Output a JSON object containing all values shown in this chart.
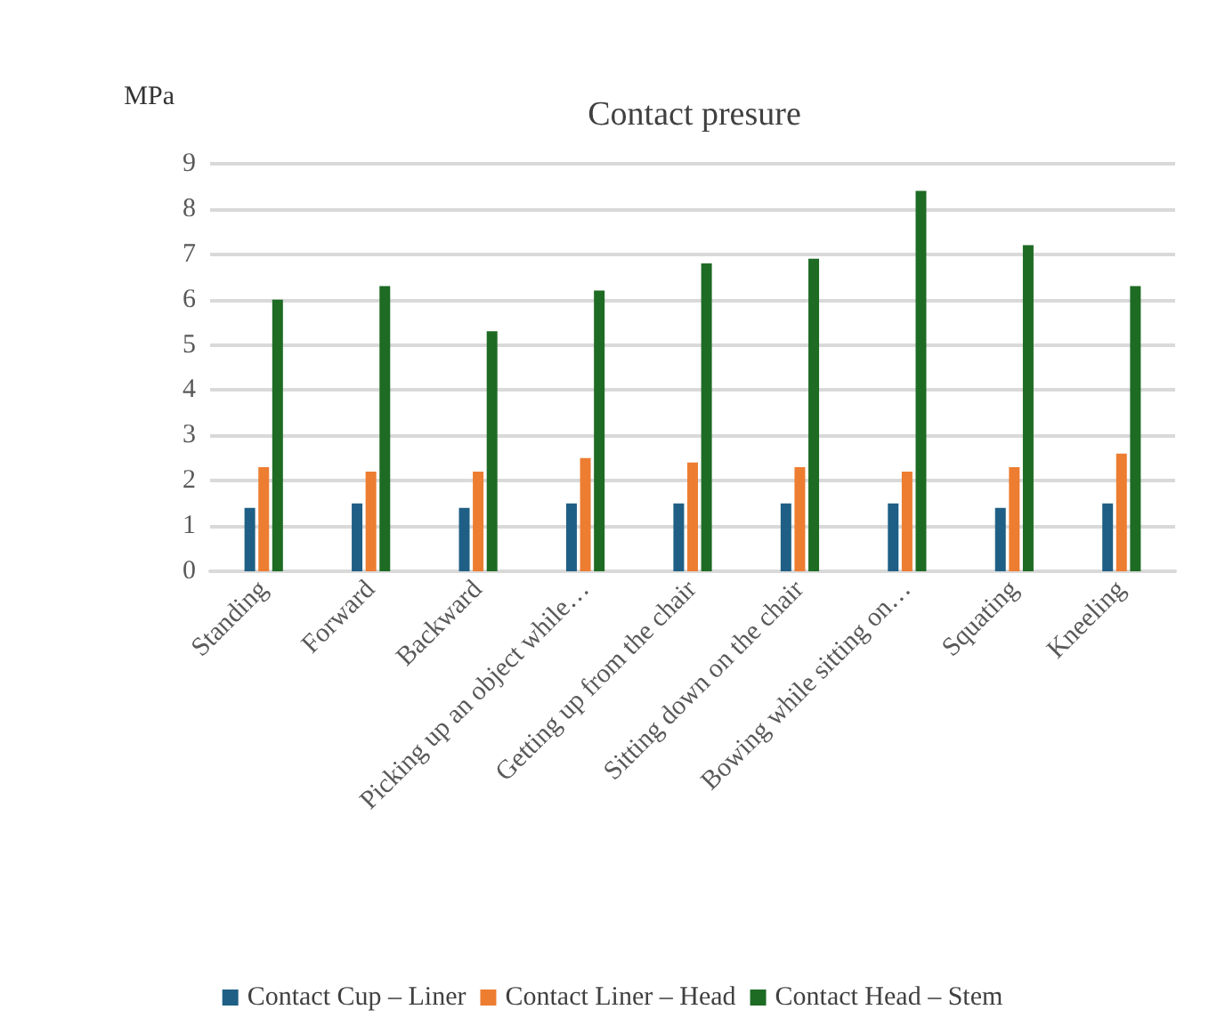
{
  "chart_data": {
    "type": "bar",
    "title": "Contact presure",
    "ylabel": "MPa",
    "categories": [
      "Standing",
      "Forward",
      "Backward",
      "Picking up an object while…",
      "Getting up from the chair",
      "Sitting down on the chair",
      "Bowing while sitting on…",
      "Squating",
      "Kneeling"
    ],
    "series": [
      {
        "name": "Contact Cup – Liner",
        "color": "#1f5f85",
        "values": [
          1.4,
          1.5,
          1.4,
          1.5,
          1.5,
          1.5,
          1.5,
          1.4,
          1.5
        ]
      },
      {
        "name": "Contact Liner – Head",
        "color": "#ed7d31",
        "values": [
          2.3,
          2.2,
          2.2,
          2.5,
          2.4,
          2.3,
          2.2,
          2.3,
          2.6
        ]
      },
      {
        "name": "Contact Head – Stem",
        "color": "#1e6b24",
        "values": [
          6.0,
          6.3,
          5.3,
          6.2,
          6.8,
          6.9,
          8.4,
          7.2,
          6.3
        ]
      }
    ],
    "ylim": [
      0,
      9
    ],
    "yticks": [
      0,
      1,
      2,
      3,
      4,
      5,
      6,
      7,
      8,
      9
    ],
    "grid": "y",
    "legend": "bottom"
  }
}
